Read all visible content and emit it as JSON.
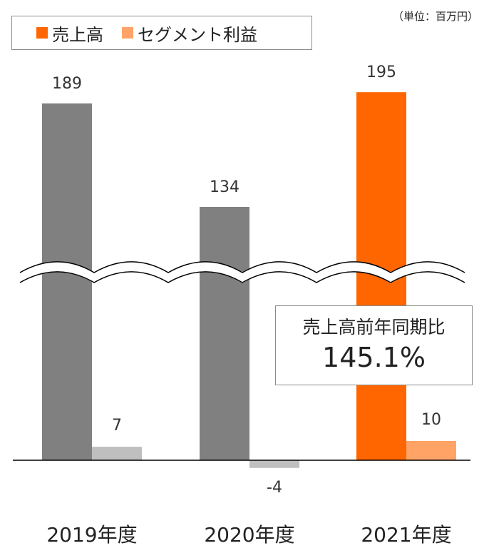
{
  "unit_label": "（単位：百万円）",
  "legend": {
    "items": [
      {
        "label": "売上高",
        "color": "#ff6600"
      },
      {
        "label": "セグメント利益",
        "color": "#ffa366"
      }
    ]
  },
  "callout": {
    "title": "売上高前年同期比",
    "value": "145.1%"
  },
  "chart_data": {
    "type": "bar",
    "categories": [
      "2019年度",
      "2020年度",
      "2021年度"
    ],
    "series": [
      {
        "name": "売上高",
        "values": [
          189,
          134,
          195
        ]
      },
      {
        "name": "セグメント利益",
        "values": [
          7,
          -4,
          10
        ]
      }
    ],
    "value_labels": {
      "売上高": [
        "189",
        "134",
        "195"
      ],
      "セグメント利益": [
        "7",
        "-4",
        "10"
      ]
    },
    "colors": {
      "売上高": [
        "#808080",
        "#808080",
        "#ff6600"
      ],
      "セグメント利益": [
        "#bfbfbf",
        "#bfbfbf",
        "#ffa366"
      ]
    },
    "axis_break": true,
    "grid": false
  }
}
